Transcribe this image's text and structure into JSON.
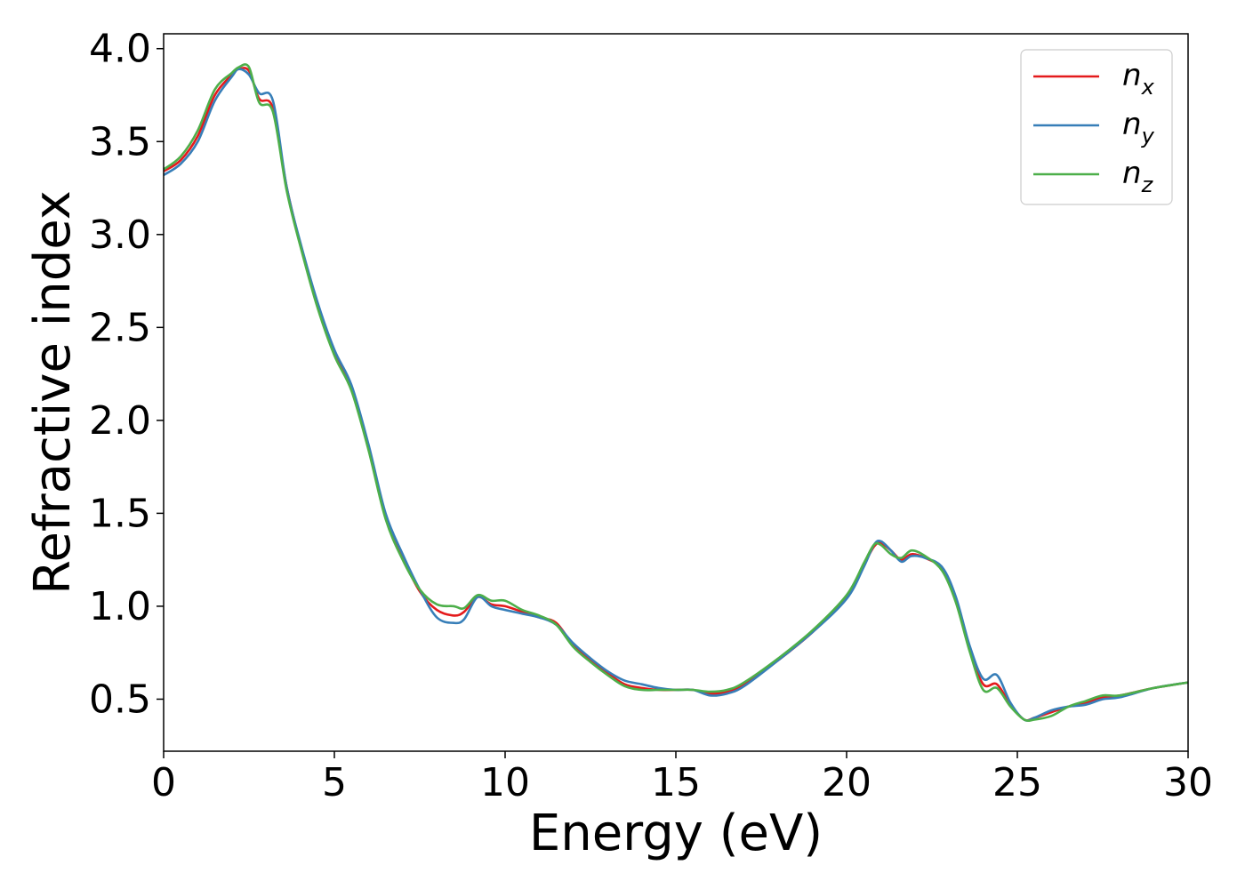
{
  "chart_data": {
    "type": "line",
    "title": "",
    "xlabel": "Energy (eV)",
    "ylabel": "Refractive index",
    "xlim": [
      0,
      30
    ],
    "ylim": [
      0.22,
      4.08
    ],
    "xticks": [
      0,
      5,
      10,
      15,
      20,
      25,
      30
    ],
    "xtick_labels": [
      "0",
      "5",
      "10",
      "15",
      "20",
      "25",
      "30"
    ],
    "yticks": [
      0.5,
      1.0,
      1.5,
      2.0,
      2.5,
      3.0,
      3.5,
      4.0
    ],
    "ytick_labels": [
      "0.5",
      "1.0",
      "1.5",
      "2.0",
      "2.5",
      "3.0",
      "3.5",
      "4.0"
    ],
    "grid": false,
    "legend_position": "top-right",
    "series": [
      {
        "name": "n_x",
        "label_base": "n",
        "label_sub": "x",
        "color": "#e41a1c",
        "x": [
          0,
          0.5,
          1,
          1.5,
          2,
          2.2,
          2.5,
          2.8,
          3.2,
          3.6,
          4,
          4.5,
          5,
          5.5,
          6,
          6.5,
          7,
          7.5,
          8,
          8.5,
          8.8,
          9.2,
          9.6,
          10,
          10.5,
          11,
          11.5,
          12,
          12.5,
          13,
          13.5,
          14,
          14.5,
          15,
          15.5,
          16,
          16.5,
          17,
          18,
          19,
          20,
          20.5,
          20.8,
          21,
          21.3,
          21.6,
          21.9,
          22.3,
          22.8,
          23.2,
          23.6,
          24,
          24.4,
          24.8,
          25.2,
          25.5,
          26,
          26.5,
          27,
          27.5,
          28,
          29,
          30
        ],
        "y": [
          3.34,
          3.4,
          3.53,
          3.75,
          3.86,
          3.89,
          3.88,
          3.73,
          3.68,
          3.26,
          2.95,
          2.62,
          2.36,
          2.17,
          1.85,
          1.48,
          1.26,
          1.08,
          0.98,
          0.95,
          0.97,
          1.05,
          1.01,
          1.0,
          0.97,
          0.94,
          0.91,
          0.79,
          0.71,
          0.64,
          0.58,
          0.56,
          0.55,
          0.55,
          0.55,
          0.53,
          0.54,
          0.58,
          0.71,
          0.86,
          1.05,
          1.22,
          1.32,
          1.34,
          1.3,
          1.25,
          1.28,
          1.26,
          1.2,
          1.03,
          0.77,
          0.58,
          0.58,
          0.47,
          0.39,
          0.4,
          0.43,
          0.46,
          0.48,
          0.51,
          0.52,
          0.56,
          0.59
        ]
      },
      {
        "name": "n_y",
        "label_base": "n",
        "label_sub": "y",
        "color": "#377eb8",
        "x": [
          0,
          0.5,
          1,
          1.5,
          2,
          2.2,
          2.5,
          2.8,
          3.2,
          3.6,
          4,
          4.5,
          5,
          5.5,
          6,
          6.5,
          7,
          7.5,
          8,
          8.5,
          8.8,
          9.2,
          9.6,
          10,
          10.5,
          11,
          11.5,
          12,
          12.5,
          13,
          13.5,
          14,
          14.5,
          15,
          15.5,
          16,
          16.5,
          17,
          18,
          19,
          20,
          20.5,
          20.8,
          21,
          21.3,
          21.6,
          21.9,
          22.3,
          22.8,
          23.2,
          23.6,
          24,
          24.4,
          24.8,
          25.2,
          25.5,
          26,
          26.5,
          27,
          27.5,
          28,
          29,
          30
        ],
        "y": [
          3.32,
          3.38,
          3.5,
          3.72,
          3.85,
          3.89,
          3.86,
          3.76,
          3.72,
          3.26,
          2.96,
          2.64,
          2.38,
          2.19,
          1.87,
          1.5,
          1.28,
          1.09,
          0.94,
          0.91,
          0.93,
          1.05,
          1.0,
          0.98,
          0.96,
          0.94,
          0.9,
          0.8,
          0.72,
          0.65,
          0.6,
          0.58,
          0.56,
          0.55,
          0.55,
          0.52,
          0.53,
          0.57,
          0.71,
          0.86,
          1.04,
          1.21,
          1.33,
          1.35,
          1.3,
          1.24,
          1.27,
          1.26,
          1.21,
          1.05,
          0.79,
          0.61,
          0.63,
          0.48,
          0.39,
          0.4,
          0.44,
          0.46,
          0.47,
          0.5,
          0.51,
          0.56,
          0.59
        ]
      },
      {
        "name": "n_z",
        "label_base": "n",
        "label_sub": "z",
        "color": "#4daf4a",
        "x": [
          0,
          0.5,
          1,
          1.5,
          2,
          2.2,
          2.5,
          2.8,
          3.2,
          3.6,
          4,
          4.5,
          5,
          5.5,
          6,
          6.5,
          7,
          7.5,
          8,
          8.5,
          8.8,
          9.2,
          9.6,
          10,
          10.5,
          11,
          11.5,
          12,
          12.5,
          13,
          13.5,
          14,
          14.5,
          15,
          15.5,
          16,
          16.5,
          17,
          18,
          19,
          20,
          20.5,
          20.8,
          21,
          21.3,
          21.6,
          21.9,
          22.3,
          22.8,
          23.2,
          23.6,
          24,
          24.4,
          24.8,
          25.2,
          25.5,
          26,
          26.5,
          27,
          27.5,
          28,
          29,
          30
        ],
        "y": [
          3.35,
          3.42,
          3.56,
          3.78,
          3.87,
          3.9,
          3.9,
          3.71,
          3.66,
          3.24,
          2.94,
          2.61,
          2.35,
          2.16,
          1.84,
          1.47,
          1.25,
          1.09,
          1.01,
          1.0,
          0.99,
          1.06,
          1.03,
          1.03,
          0.98,
          0.95,
          0.9,
          0.78,
          0.7,
          0.63,
          0.57,
          0.55,
          0.55,
          0.55,
          0.55,
          0.54,
          0.55,
          0.59,
          0.72,
          0.87,
          1.06,
          1.23,
          1.33,
          1.33,
          1.28,
          1.26,
          1.3,
          1.27,
          1.19,
          1.02,
          0.76,
          0.55,
          0.56,
          0.46,
          0.39,
          0.39,
          0.41,
          0.46,
          0.49,
          0.52,
          0.52,
          0.56,
          0.59
        ]
      }
    ]
  }
}
